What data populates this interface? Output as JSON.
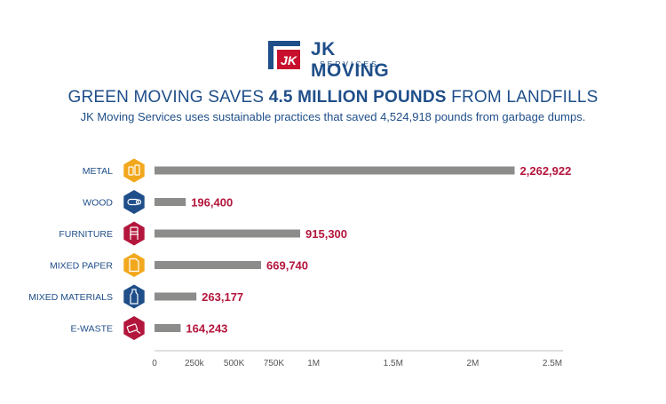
{
  "logo": {
    "name": "JK MOVING",
    "sub": "SERVICES",
    "mark": "JK"
  },
  "title": {
    "prefix": "GREEN MOVING SAVES ",
    "bold": "4.5 MILLION POUNDS",
    "suffix": " FROM LANDFILLS"
  },
  "subtitle": "JK Moving Services uses sustainable practices that saved 4,524,918 pounds from garbage dumps.",
  "colors": {
    "navy": "#1f4e89",
    "orange": "#f2a81d",
    "red": "#b3163c",
    "bar": "#8c8c8a"
  },
  "chart_data": {
    "type": "bar",
    "orientation": "horizontal",
    "categories": [
      "METAL",
      "WOOD",
      "FURNITURE",
      "MIXED PAPER",
      "MIXED MATERIALS",
      "E-WASTE"
    ],
    "values": [
      2262922,
      196400,
      915300,
      669740,
      263177,
      164243
    ],
    "value_labels": [
      "2,262,922",
      "196,400",
      "915,300",
      "669,740",
      "263,177",
      "164,243"
    ],
    "icons": [
      {
        "name": "metal-cans-icon",
        "color": "orange"
      },
      {
        "name": "wood-log-icon",
        "color": "navy"
      },
      {
        "name": "chair-icon",
        "color": "red"
      },
      {
        "name": "paper-icon",
        "color": "orange"
      },
      {
        "name": "bottle-icon",
        "color": "navy"
      },
      {
        "name": "device-icon",
        "color": "red"
      }
    ],
    "xticks": [
      0,
      250000,
      500000,
      750000,
      1000000,
      1500000,
      2000000,
      2500000
    ],
    "xtick_labels": [
      "0",
      "250k",
      "500K",
      "750K",
      "1M",
      "1.5M",
      "2M",
      "2.5M"
    ],
    "xlim": [
      0,
      2500000
    ],
    "grid": false
  }
}
